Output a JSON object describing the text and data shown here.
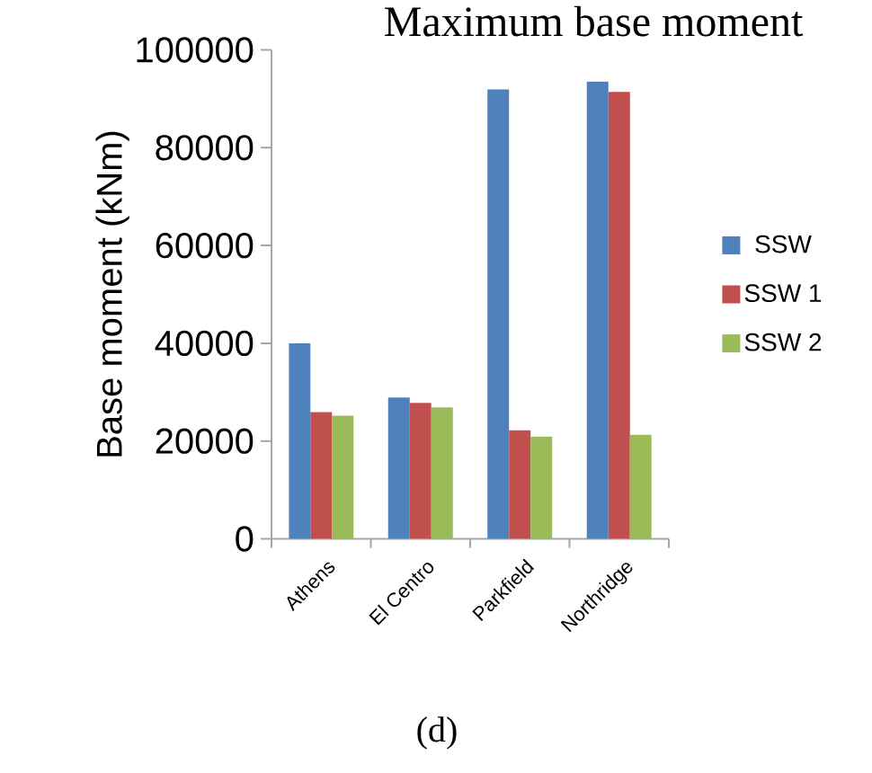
{
  "chart_data": {
    "type": "bar",
    "title": "Maximum base moment",
    "ylabel": "Base moment (kNm)",
    "categories": [
      "Athens",
      "El Centro",
      "Parkfield",
      "Northridge"
    ],
    "series": [
      {
        "name": "SSW",
        "color": "#4f81bd",
        "values": [
          40000,
          28900,
          91900,
          93500
        ]
      },
      {
        "name": "SSW 1",
        "color": "#c0504d",
        "values": [
          25900,
          27800,
          22200,
          91400
        ]
      },
      {
        "name": "SSW 2",
        "color": "#9bbb59",
        "values": [
          25200,
          26900,
          20900,
          21300
        ]
      }
    ],
    "ylim": [
      0,
      100000
    ],
    "yticks": [
      0,
      20000,
      40000,
      60000,
      80000,
      100000
    ],
    "grid": false,
    "legend": "right",
    "annotations": [
      "(d)"
    ]
  }
}
